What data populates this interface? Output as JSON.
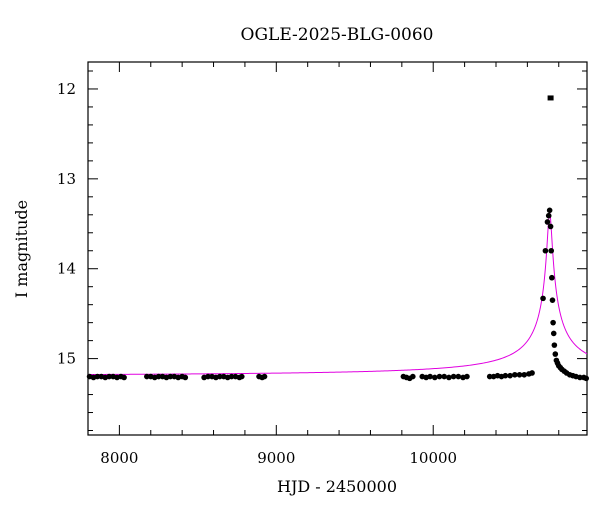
{
  "chart_data": {
    "type": "scatter",
    "title": "OGLE-2025-BLG-0060",
    "xlabel": "HJD - 2450000",
    "ylabel": "I magnitude",
    "xlim": [
      7800,
      10980
    ],
    "ylim": [
      15.85,
      11.7
    ],
    "y_inverted": true,
    "x_ticks": [
      8000,
      9000,
      10000
    ],
    "x_tick_labels": [
      "8000",
      "9000",
      "10000"
    ],
    "y_ticks": [
      12,
      13,
      14,
      15
    ],
    "y_tick_labels": [
      "12",
      "13",
      "14",
      "15"
    ],
    "grid": false,
    "series": [
      {
        "marker": "circle",
        "color": "#000000",
        "x": [
          7810,
          7835,
          7860,
          7885,
          7910,
          7935,
          7960,
          7985,
          8010,
          8030,
          8175,
          8200,
          8225,
          8250,
          8275,
          8300,
          8325,
          8350,
          8375,
          8400,
          8420,
          8540,
          8565,
          8590,
          8615,
          8640,
          8665,
          8690,
          8715,
          8740,
          8765,
          8780,
          8890,
          8910,
          8925,
          9810,
          9830,
          9850,
          9870,
          9930,
          9955,
          9980,
          10010,
          10040,
          10070,
          10100,
          10130,
          10160,
          10190,
          10215,
          10360,
          10385,
          10410,
          10435,
          10460,
          10490,
          10520,
          10550,
          10580,
          10610,
          10630,
          10700,
          10715,
          10728,
          10736,
          10742,
          10748,
          10752,
          10756,
          10760,
          10764,
          10768,
          10772,
          10778,
          10785,
          10792,
          10800,
          10810,
          10820,
          10835,
          10850,
          10870,
          10890,
          10910,
          10935,
          10960,
          10975
        ],
        "y": [
          15.2,
          15.21,
          15.2,
          15.2,
          15.21,
          15.2,
          15.2,
          15.21,
          15.2,
          15.21,
          15.2,
          15.2,
          15.21,
          15.2,
          15.2,
          15.21,
          15.2,
          15.2,
          15.21,
          15.2,
          15.21,
          15.21,
          15.2,
          15.2,
          15.21,
          15.2,
          15.2,
          15.21,
          15.2,
          15.2,
          15.21,
          15.2,
          15.2,
          15.21,
          15.2,
          15.2,
          15.21,
          15.22,
          15.2,
          15.2,
          15.21,
          15.2,
          15.21,
          15.2,
          15.2,
          15.21,
          15.2,
          15.2,
          15.21,
          15.2,
          15.2,
          15.2,
          15.19,
          15.2,
          15.19,
          15.19,
          15.18,
          15.18,
          15.18,
          15.17,
          15.16,
          14.33,
          13.8,
          13.48,
          13.41,
          13.35,
          13.53,
          13.8,
          14.1,
          14.35,
          14.6,
          14.72,
          14.85,
          14.95,
          15.02,
          15.05,
          15.08,
          15.1,
          15.12,
          15.14,
          15.16,
          15.18,
          15.19,
          15.2,
          15.21,
          15.21,
          15.22
        ]
      },
      {
        "marker": "square",
        "color": "#000000",
        "x": [
          10748
        ],
        "y": [
          12.1
        ]
      }
    ],
    "model": {
      "type": "line",
      "color": "#e000e0",
      "baseline": 15.2,
      "peak_t": 10742,
      "peak_mag": 13.38,
      "tE": 25,
      "x_start": 7800,
      "x_end": 10980
    }
  }
}
